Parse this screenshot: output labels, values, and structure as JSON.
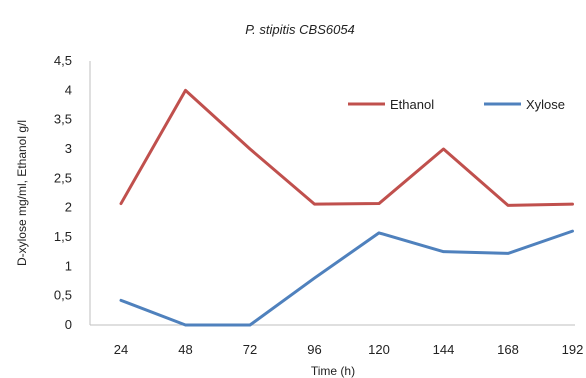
{
  "chart_data": {
    "type": "line",
    "title": "P. stipitis CBS6054",
    "xlabel": "Time (h)",
    "ylabel": "D-xylose mg/ml, Ethanol g/l",
    "categories": [
      "24",
      "48",
      "72",
      "96",
      "120",
      "144",
      "168",
      "192"
    ],
    "yticks": [
      "0",
      "0,5",
      "1",
      "1,5",
      "2",
      "2,5",
      "3",
      "3,5",
      "4",
      "4,5"
    ],
    "ylim": [
      0,
      4.5
    ],
    "grid": false,
    "legend_position": "top-right",
    "series": [
      {
        "name": "Ethanol",
        "color": "#c0504d",
        "values": [
          2.07,
          4.0,
          3.0,
          2.06,
          2.07,
          3.0,
          2.04,
          2.06
        ]
      },
      {
        "name": "Xylose",
        "color": "#4f81bd",
        "values": [
          0.42,
          0.0,
          0.0,
          0.8,
          1.57,
          1.25,
          1.22,
          1.6
        ]
      }
    ]
  }
}
